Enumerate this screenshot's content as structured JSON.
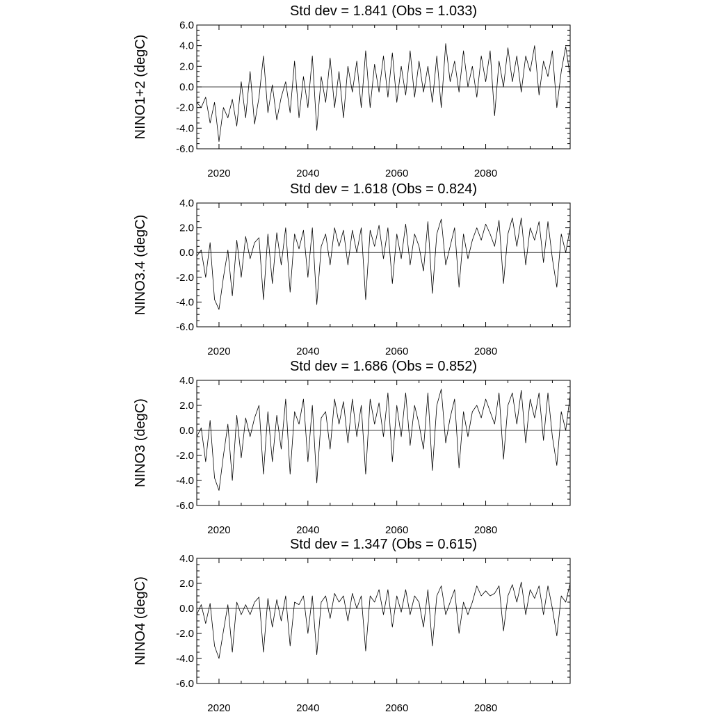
{
  "chart_data": [
    {
      "type": "line",
      "title": "Std dev = 1.841 (Obs = 1.033)",
      "ylabel": "NINO1+2 (degC)",
      "xlim": [
        2015,
        2099
      ],
      "ylim": [
        -6.0,
        6.0
      ],
      "xticks": [
        2020,
        2040,
        2060,
        2080
      ],
      "xtick_labels": [
        "2020",
        "2040",
        "2060",
        "2080"
      ],
      "yticks": [
        -6,
        -4,
        -2,
        0,
        2,
        4,
        6
      ],
      "ytick_labels": [
        "-6.0",
        "-4.0",
        "-2.0",
        "0.0",
        "2.0",
        "4.0",
        "6.0"
      ],
      "zero_line": true,
      "series": [
        {
          "x": [
            2015.0,
            2016.0,
            2017.0,
            2018.0,
            2019.0,
            2020.0,
            2021.0,
            2022.0,
            2023.0,
            2024.0,
            2025.0,
            2026.0,
            2027.0,
            2028.0,
            2029.0,
            2030.0,
            2031.0,
            2032.0,
            2033.0,
            2034.0,
            2035.0,
            2036.0,
            2037.0,
            2038.0,
            2039.0,
            2040.0,
            2041.0,
            2042.0,
            2043.0,
            2044.0,
            2045.0,
            2046.0,
            2047.0,
            2048.0,
            2049.0,
            2050.0,
            2051.0,
            2052.0,
            2053.0,
            2054.0,
            2055.0,
            2056.0,
            2057.0,
            2058.0,
            2059.0,
            2060.0,
            2061.0,
            2062.0,
            2063.0,
            2064.0,
            2065.0,
            2066.0,
            2067.0,
            2068.0,
            2069.0,
            2070.0,
            2071.0,
            2072.0,
            2073.0,
            2074.0,
            2075.0,
            2076.0,
            2077.0,
            2078.0,
            2079.0,
            2080.0,
            2081.0,
            2082.0,
            2083.0,
            2084.0,
            2085.0,
            2086.0,
            2087.0,
            2088.0,
            2089.0,
            2090.0,
            2091.0,
            2092.0,
            2093.0,
            2094.0,
            2095.0,
            2096.0,
            2097.0,
            2098.0,
            2099.0
          ],
          "y": [
            -1.5,
            -2.0,
            -1.0,
            -3.5,
            -1.5,
            -5.3,
            -2.0,
            -3.0,
            -1.2,
            -3.8,
            0.5,
            -3.0,
            1.5,
            -3.6,
            -1.0,
            3.0,
            -2.5,
            0.2,
            -3.2,
            -1.0,
            0.5,
            -2.5,
            2.5,
            -3.0,
            1.0,
            -2.0,
            3.0,
            -4.2,
            1.0,
            -1.5,
            2.8,
            -2.0,
            1.5,
            -3.0,
            2.0,
            -0.5,
            2.5,
            -2.0,
            3.5,
            -2.0,
            2.2,
            -0.5,
            3.0,
            -1.0,
            3.3,
            -1.5,
            2.0,
            -0.8,
            3.5,
            -1.0,
            2.5,
            -0.5,
            2.0,
            -1.5,
            3.0,
            -2.0,
            4.2,
            0.5,
            2.5,
            -0.5,
            3.5,
            0.0,
            2.0,
            -1.0,
            3.0,
            0.5,
            3.5,
            -2.8,
            2.5,
            0.0,
            3.8,
            0.5,
            3.0,
            -0.5,
            3.0,
            1.5,
            4.0,
            -0.8,
            2.5,
            1.0,
            3.5,
            -2.0,
            1.5,
            3.9,
            1.0
          ]
        }
      ]
    },
    {
      "type": "line",
      "title": "Std dev = 1.618 (Obs = 0.824)",
      "ylabel": "NINO3.4 (degC)",
      "xlim": [
        2015,
        2099
      ],
      "ylim": [
        -6.0,
        4.0
      ],
      "xticks": [
        2020,
        2040,
        2060,
        2080
      ],
      "xtick_labels": [
        "2020",
        "2040",
        "2060",
        "2080"
      ],
      "yticks": [
        -6,
        -4,
        -2,
        0,
        2,
        4
      ],
      "ytick_labels": [
        "-6.0",
        "-4.0",
        "-2.0",
        "0.0",
        "2.0",
        "4.0"
      ],
      "zero_line": true,
      "series": [
        {
          "x": [
            2015.0,
            2016.0,
            2017.0,
            2018.0,
            2019.0,
            2020.0,
            2021.0,
            2022.0,
            2023.0,
            2024.0,
            2025.0,
            2026.0,
            2027.0,
            2028.0,
            2029.0,
            2030.0,
            2031.0,
            2032.0,
            2033.0,
            2034.0,
            2035.0,
            2036.0,
            2037.0,
            2038.0,
            2039.0,
            2040.0,
            2041.0,
            2042.0,
            2043.0,
            2044.0,
            2045.0,
            2046.0,
            2047.0,
            2048.0,
            2049.0,
            2050.0,
            2051.0,
            2052.0,
            2053.0,
            2054.0,
            2055.0,
            2056.0,
            2057.0,
            2058.0,
            2059.0,
            2060.0,
            2061.0,
            2062.0,
            2063.0,
            2064.0,
            2065.0,
            2066.0,
            2067.0,
            2068.0,
            2069.0,
            2070.0,
            2071.0,
            2072.0,
            2073.0,
            2074.0,
            2075.0,
            2076.0,
            2077.0,
            2078.0,
            2079.0,
            2080.0,
            2081.0,
            2082.0,
            2083.0,
            2084.0,
            2085.0,
            2086.0,
            2087.0,
            2088.0,
            2089.0,
            2090.0,
            2091.0,
            2092.0,
            2093.0,
            2094.0,
            2095.0,
            2096.0,
            2097.0,
            2098.0,
            2099.0
          ],
          "y": [
            -0.3,
            0.2,
            -2.0,
            0.8,
            -3.8,
            -4.6,
            -2.0,
            0.2,
            -3.5,
            1.0,
            -2.0,
            1.3,
            -0.5,
            0.8,
            1.2,
            -3.8,
            1.5,
            -2.5,
            1.6,
            -1.0,
            2.0,
            -3.2,
            1.5,
            0.3,
            1.8,
            -2.0,
            2.0,
            -4.2,
            0.5,
            1.5,
            -1.0,
            2.0,
            0.5,
            1.8,
            -1.0,
            1.8,
            0.0,
            2.0,
            -3.8,
            1.8,
            0.5,
            2.2,
            -0.5,
            2.0,
            -2.5,
            1.5,
            -0.5,
            2.3,
            -1.0,
            1.5,
            0.5,
            -1.5,
            2.5,
            -3.3,
            1.5,
            2.7,
            -1.0,
            0.5,
            2.0,
            -2.8,
            1.5,
            -0.5,
            1.0,
            2.0,
            1.0,
            2.3,
            1.5,
            0.5,
            2.6,
            -2.5,
            1.5,
            2.8,
            0.5,
            2.8,
            -1.0,
            2.0,
            1.0,
            2.5,
            -0.8,
            2.5,
            -0.5,
            -2.8,
            1.5,
            0.0,
            2.0
          ]
        }
      ]
    },
    {
      "type": "line",
      "title": "Std dev = 1.686 (Obs = 0.852)",
      "ylabel": "NINO3 (degC)",
      "xlim": [
        2015,
        2099
      ],
      "ylim": [
        -6.0,
        4.0
      ],
      "xticks": [
        2020,
        2040,
        2060,
        2080
      ],
      "xtick_labels": [
        "2020",
        "2040",
        "2060",
        "2080"
      ],
      "yticks": [
        -6,
        -4,
        -2,
        0,
        2,
        4
      ],
      "ytick_labels": [
        "-6.0",
        "-4.0",
        "-2.0",
        "0.0",
        "2.0",
        "4.0"
      ],
      "zero_line": true,
      "series": [
        {
          "x": [
            2015.0,
            2016.0,
            2017.0,
            2018.0,
            2019.0,
            2020.0,
            2021.0,
            2022.0,
            2023.0,
            2024.0,
            2025.0,
            2026.0,
            2027.0,
            2028.0,
            2029.0,
            2030.0,
            2031.0,
            2032.0,
            2033.0,
            2034.0,
            2035.0,
            2036.0,
            2037.0,
            2038.0,
            2039.0,
            2040.0,
            2041.0,
            2042.0,
            2043.0,
            2044.0,
            2045.0,
            2046.0,
            2047.0,
            2048.0,
            2049.0,
            2050.0,
            2051.0,
            2052.0,
            2053.0,
            2054.0,
            2055.0,
            2056.0,
            2057.0,
            2058.0,
            2059.0,
            2060.0,
            2061.0,
            2062.0,
            2063.0,
            2064.0,
            2065.0,
            2066.0,
            2067.0,
            2068.0,
            2069.0,
            2070.0,
            2071.0,
            2072.0,
            2073.0,
            2074.0,
            2075.0,
            2076.0,
            2077.0,
            2078.0,
            2079.0,
            2080.0,
            2081.0,
            2082.0,
            2083.0,
            2084.0,
            2085.0,
            2086.0,
            2087.0,
            2088.0,
            2089.0,
            2090.0,
            2091.0,
            2092.0,
            2093.0,
            2094.0,
            2095.0,
            2096.0,
            2097.0,
            2098.0,
            2099.0
          ],
          "y": [
            -0.5,
            0.2,
            -2.5,
            0.8,
            -3.8,
            -4.8,
            -2.0,
            0.5,
            -4.0,
            1.2,
            -2.2,
            1.0,
            -0.5,
            1.0,
            2.0,
            -3.5,
            1.5,
            -2.5,
            1.2,
            -1.5,
            2.5,
            -3.5,
            1.5,
            0.5,
            2.5,
            -2.5,
            2.0,
            -4.2,
            1.0,
            1.5,
            -1.5,
            2.5,
            0.5,
            2.3,
            -1.0,
            2.5,
            -0.5,
            2.0,
            -3.5,
            2.5,
            0.5,
            2.2,
            -0.5,
            3.0,
            -2.5,
            2.0,
            -0.5,
            3.0,
            -1.2,
            2.0,
            0.5,
            -1.5,
            3.0,
            -3.2,
            2.0,
            3.3,
            -1.0,
            1.0,
            2.5,
            -3.0,
            1.5,
            -0.5,
            1.5,
            2.0,
            1.0,
            2.5,
            1.5,
            0.5,
            3.0,
            -2.3,
            2.0,
            3.0,
            0.5,
            3.2,
            -1.0,
            2.5,
            1.0,
            3.0,
            -0.8,
            3.0,
            -0.5,
            -2.8,
            1.5,
            0.0,
            2.8
          ]
        }
      ]
    },
    {
      "type": "line",
      "title": "Std dev = 1.347 (Obs = 0.615)",
      "ylabel": "NINO4 (degC)",
      "xlim": [
        2015,
        2099
      ],
      "ylim": [
        -6.0,
        4.0
      ],
      "xticks": [
        2020,
        2040,
        2060,
        2080
      ],
      "xtick_labels": [
        "2020",
        "2040",
        "2060",
        "2080"
      ],
      "yticks": [
        -6,
        -4,
        -2,
        0,
        2,
        4
      ],
      "ytick_labels": [
        "-6.0",
        "-4.0",
        "-2.0",
        "0.0",
        "2.0",
        "4.0"
      ],
      "zero_line": true,
      "series": [
        {
          "x": [
            2015.0,
            2016.0,
            2017.0,
            2018.0,
            2019.0,
            2020.0,
            2021.0,
            2022.0,
            2023.0,
            2024.0,
            2025.0,
            2026.0,
            2027.0,
            2028.0,
            2029.0,
            2030.0,
            2031.0,
            2032.0,
            2033.0,
            2034.0,
            2035.0,
            2036.0,
            2037.0,
            2038.0,
            2039.0,
            2040.0,
            2041.0,
            2042.0,
            2043.0,
            2044.0,
            2045.0,
            2046.0,
            2047.0,
            2048.0,
            2049.0,
            2050.0,
            2051.0,
            2052.0,
            2053.0,
            2054.0,
            2055.0,
            2056.0,
            2057.0,
            2058.0,
            2059.0,
            2060.0,
            2061.0,
            2062.0,
            2063.0,
            2064.0,
            2065.0,
            2066.0,
            2067.0,
            2068.0,
            2069.0,
            2070.0,
            2071.0,
            2072.0,
            2073.0,
            2074.0,
            2075.0,
            2076.0,
            2077.0,
            2078.0,
            2079.0,
            2080.0,
            2081.0,
            2082.0,
            2083.0,
            2084.0,
            2085.0,
            2086.0,
            2087.0,
            2088.0,
            2089.0,
            2090.0,
            2091.0,
            2092.0,
            2093.0,
            2094.0,
            2095.0,
            2096.0,
            2097.0,
            2098.0,
            2099.0
          ],
          "y": [
            -0.5,
            0.3,
            -1.2,
            0.4,
            -3.0,
            -4.0,
            -1.8,
            0.3,
            -3.5,
            0.5,
            -0.5,
            0.3,
            -0.5,
            0.5,
            0.9,
            -3.5,
            0.8,
            -1.5,
            0.7,
            -1.0,
            1.0,
            -3.0,
            0.5,
            0.3,
            1.0,
            -2.0,
            1.0,
            -3.7,
            0.5,
            1.0,
            -0.8,
            1.2,
            0.5,
            1.0,
            -1.0,
            1.2,
            0.0,
            1.0,
            -3.4,
            1.0,
            0.5,
            1.5,
            -0.5,
            1.5,
            -1.5,
            1.0,
            -0.3,
            1.5,
            -0.5,
            1.0,
            0.5,
            -1.5,
            1.5,
            -3.0,
            1.0,
            1.8,
            -0.5,
            0.5,
            1.5,
            -2.0,
            0.5,
            -0.5,
            0.5,
            1.8,
            1.0,
            1.4,
            1.0,
            1.2,
            1.8,
            -1.8,
            1.0,
            1.9,
            0.5,
            2.1,
            -0.5,
            1.5,
            0.8,
            1.8,
            -0.5,
            1.8,
            0.0,
            -2.2,
            1.0,
            0.5,
            2.0
          ]
        }
      ]
    }
  ]
}
